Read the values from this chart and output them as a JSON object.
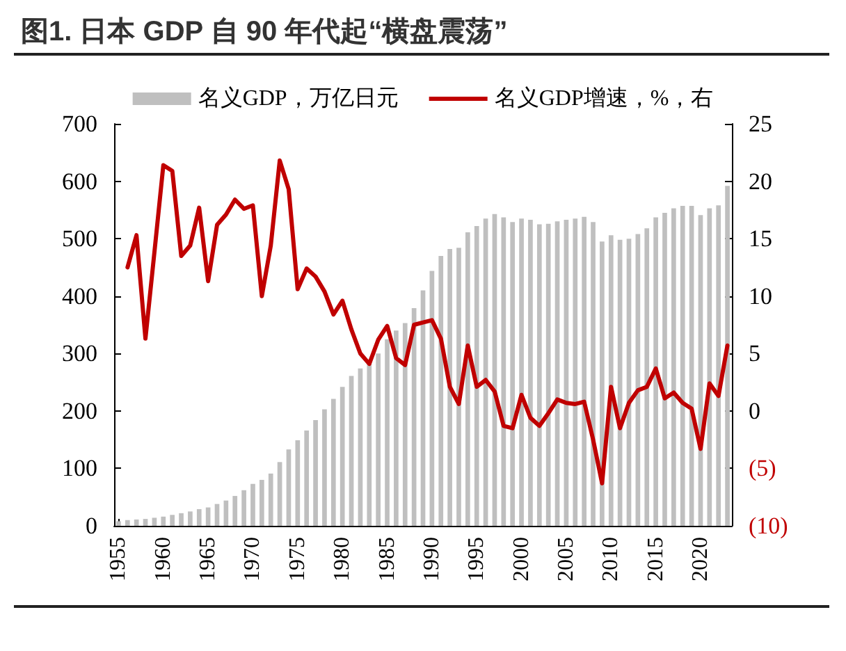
{
  "chart_data": {
    "type": "bar",
    "title": "图1. 日本 GDP 自 90 年代起“横盘震荡”",
    "categories": [
      "1955",
      null,
      null,
      null,
      null,
      "1960",
      null,
      null,
      null,
      null,
      "1965",
      null,
      null,
      null,
      null,
      "1970",
      null,
      null,
      null,
      null,
      "1975",
      null,
      null,
      null,
      null,
      "1980",
      null,
      null,
      null,
      null,
      "1985",
      null,
      null,
      null,
      null,
      "1990",
      null,
      null,
      null,
      null,
      "1995",
      null,
      null,
      null,
      null,
      "2000",
      null,
      null,
      null,
      null,
      "2005",
      null,
      null,
      null,
      null,
      "2010",
      null,
      null,
      null,
      null,
      "2015",
      null,
      null,
      null,
      null,
      "2020",
      null,
      null,
      null
    ],
    "series": [
      {
        "name": "名义GDP，万亿日元",
        "type": "bar",
        "color": "#bfbfbf",
        "values": [
          8,
          10,
          11,
          12,
          14,
          16,
          19,
          22,
          25,
          29,
          32,
          38,
          44,
          52,
          62,
          73,
          80,
          91,
          111,
          133,
          149,
          166,
          184,
          203,
          221,
          242,
          261,
          274,
          285,
          300,
          325,
          340,
          353,
          379,
          410,
          444,
          470,
          482,
          484,
          511,
          522,
          535,
          543,
          537,
          529,
          535,
          533,
          525,
          526,
          530,
          533,
          535,
          538,
          529,
          495,
          506,
          498,
          500,
          508,
          518,
          537,
          545,
          553,
          557,
          557,
          541,
          553,
          558,
          592
        ]
      },
      {
        "name": "名义GDP增速，%，右",
        "type": "line",
        "axis": "y2",
        "color": "#c00000",
        "values": [
          null,
          12.5,
          15.3,
          6.3,
          13.8,
          21.4,
          20.9,
          13.5,
          14.4,
          17.7,
          11.3,
          16.2,
          17.1,
          18.4,
          17.6,
          17.9,
          10.0,
          14.4,
          21.8,
          19.3,
          10.6,
          12.4,
          11.7,
          10.4,
          8.4,
          9.6,
          7.1,
          5.0,
          4.1,
          6.2,
          7.4,
          4.6,
          4.0,
          7.5,
          7.7,
          7.9,
          6.3,
          2.1,
          0.6,
          5.7,
          2.1,
          2.7,
          1.7,
          -1.3,
          -1.5,
          1.4,
          -0.6,
          -1.3,
          -0.2,
          1.0,
          0.7,
          0.6,
          0.8,
          -2.5,
          -6.3,
          2.1,
          -1.5,
          0.7,
          1.8,
          2.1,
          3.7,
          1.1,
          1.6,
          0.7,
          0.2,
          -3.3,
          2.4,
          1.3,
          5.7
        ]
      }
    ],
    "ylim": [
      0,
      700
    ],
    "yticks": [
      0,
      100,
      200,
      300,
      400,
      500,
      600,
      700
    ],
    "y2lim": [
      -10,
      25
    ],
    "y2ticks": [
      {
        "value": -10,
        "label": "(10)"
      },
      {
        "value": -5,
        "label": "(5)"
      },
      0,
      5,
      10,
      15,
      20,
      25
    ],
    "legend": "top"
  }
}
